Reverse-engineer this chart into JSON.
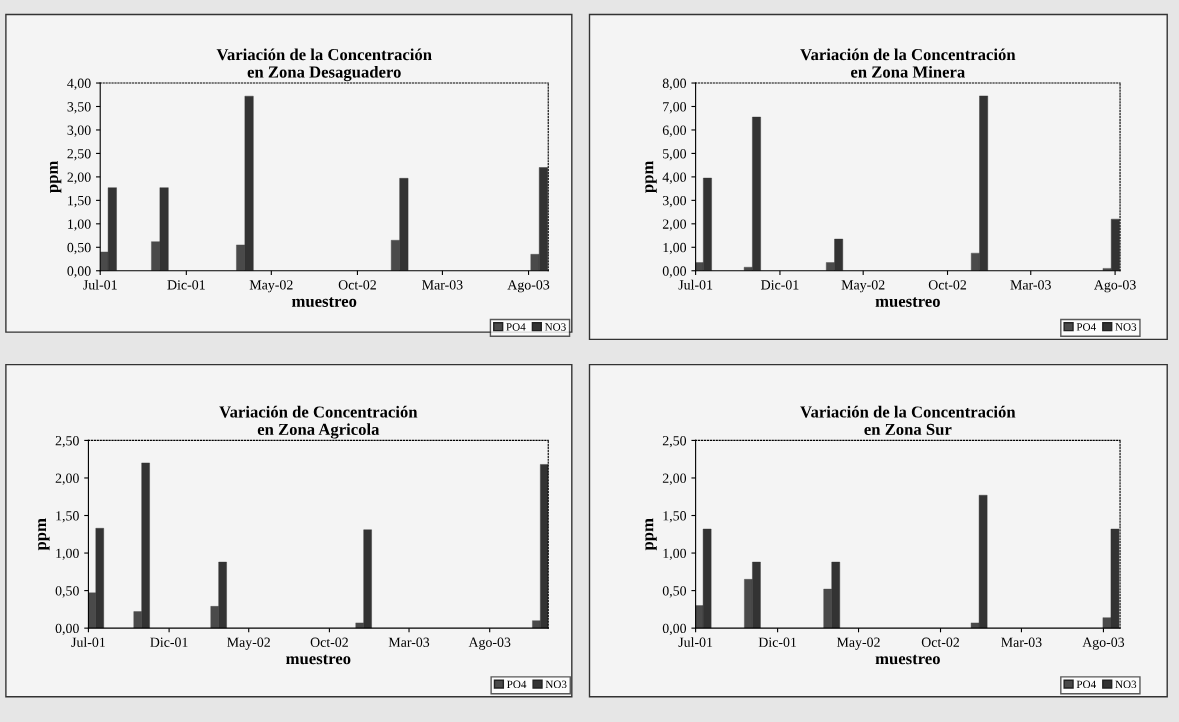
{
  "chart_data": [
    {
      "type": "bar",
      "title": "Variación de la Concentración\nen Zona Desaguadero",
      "xlabel": "muestreo",
      "ylabel": "ppm",
      "x": [
        "2001-07-15",
        "2001-10-15",
        "2002-03-15",
        "2002-12-15",
        "2003-08-20"
      ],
      "series": [
        {
          "name": "PO4",
          "color": "#4a4a4a",
          "values": [
            0.4,
            0.62,
            0.55,
            0.65,
            0.35
          ]
        },
        {
          "name": "NO3",
          "color": "#333333",
          "values": [
            1.77,
            1.77,
            3.72,
            1.97,
            2.2
          ]
        }
      ],
      "xlim": [
        "2001-07-01",
        "2003-09-05"
      ],
      "xticks": [
        {
          "value": "2001-07-01",
          "label": "Jul-01"
        },
        {
          "value": "2001-12-01",
          "label": "Dic-01"
        },
        {
          "value": "2002-05-01",
          "label": "May-02"
        },
        {
          "value": "2002-10-01",
          "label": "Oct-02"
        },
        {
          "value": "2003-03-01",
          "label": "Mar-03"
        },
        {
          "value": "2003-08-01",
          "label": "Ago-03"
        }
      ],
      "ylim": [
        0,
        4
      ],
      "yticks": [
        {
          "value": 0,
          "label": "0,00"
        },
        {
          "value": 0.5,
          "label": "0,50"
        },
        {
          "value": 1,
          "label": "1,00"
        },
        {
          "value": 1.5,
          "label": "1,50"
        },
        {
          "value": 2,
          "label": "2,00"
        },
        {
          "value": 2.5,
          "label": "2,50"
        },
        {
          "value": 3,
          "label": "3,00"
        },
        {
          "value": 3.5,
          "label": "3,50"
        },
        {
          "value": 4,
          "label": "4,00"
        }
      ],
      "legend": "bottom right"
    },
    {
      "type": "bar",
      "title": "Variación de la Concentración\nen Zona Minera",
      "xlabel": "muestreo",
      "ylabel": "ppm",
      "x": [
        "2001-07-15",
        "2001-10-12",
        "2002-03-10",
        "2002-11-28",
        "2003-07-25"
      ],
      "series": [
        {
          "name": "PO4",
          "color": "#4a4a4a",
          "values": [
            0.35,
            0.15,
            0.35,
            0.75,
            0.1
          ]
        },
        {
          "name": "NO3",
          "color": "#333333",
          "values": [
            3.95,
            6.55,
            1.35,
            7.45,
            2.2
          ]
        }
      ],
      "xlim": [
        "2001-07-01",
        "2003-08-10"
      ],
      "xticks": [
        {
          "value": "2001-07-01",
          "label": "Jul-01"
        },
        {
          "value": "2001-12-01",
          "label": "Dic-01"
        },
        {
          "value": "2002-05-01",
          "label": "May-02"
        },
        {
          "value": "2002-10-01",
          "label": "Oct-02"
        },
        {
          "value": "2003-03-01",
          "label": "Mar-03"
        },
        {
          "value": "2003-08-01",
          "label": "Ago-03"
        }
      ],
      "ylim": [
        0,
        8
      ],
      "yticks": [
        {
          "value": 0,
          "label": "0,00"
        },
        {
          "value": 1,
          "label": "1,00"
        },
        {
          "value": 2,
          "label": "2,00"
        },
        {
          "value": 3,
          "label": "3,00"
        },
        {
          "value": 4,
          "label": "4,00"
        },
        {
          "value": 5,
          "label": "5,00"
        },
        {
          "value": 6,
          "label": "6,00"
        },
        {
          "value": 7,
          "label": "7,00"
        },
        {
          "value": 8,
          "label": "8,00"
        }
      ],
      "legend": "bottom right"
    },
    {
      "type": "bar",
      "title": "Variación de Concentración\nen Zona Agricola",
      "xlabel": "muestreo",
      "ylabel": "ppm",
      "x": [
        "2001-07-15",
        "2001-10-10",
        "2002-03-05",
        "2002-12-05",
        "2003-11-05"
      ],
      "series": [
        {
          "name": "PO4",
          "color": "#4a4a4a",
          "values": [
            0.47,
            0.22,
            0.29,
            0.07,
            0.1
          ]
        },
        {
          "name": "NO3",
          "color": "#333333",
          "values": [
            1.33,
            2.2,
            0.88,
            1.31,
            2.18
          ]
        }
      ],
      "xlim": [
        "2001-07-01",
        "2003-11-20"
      ],
      "xticks": [
        {
          "value": "2001-07-01",
          "label": "Jul-01"
        },
        {
          "value": "2001-12-01",
          "label": "Dic-01"
        },
        {
          "value": "2002-05-01",
          "label": "May-02"
        },
        {
          "value": "2002-10-01",
          "label": "Oct-02"
        },
        {
          "value": "2003-03-01",
          "label": "Mar-03"
        },
        {
          "value": "2003-08-01",
          "label": "Ago-03"
        }
      ],
      "ylim": [
        0,
        2.5
      ],
      "yticks": [
        {
          "value": 0,
          "label": "0,00"
        },
        {
          "value": 0.5,
          "label": "0,50"
        },
        {
          "value": 1,
          "label": "1,00"
        },
        {
          "value": 1.5,
          "label": "1,50"
        },
        {
          "value": 2,
          "label": "2,00"
        },
        {
          "value": 2.5,
          "label": "2,50"
        }
      ],
      "legend": "bottom right"
    },
    {
      "type": "bar",
      "title": "Variación de la Concentración\nen Zona Sur",
      "xlabel": "muestreo",
      "ylabel": "ppm",
      "x": [
        "2001-07-15",
        "2001-10-15",
        "2002-03-12",
        "2002-12-12",
        "2003-08-15"
      ],
      "series": [
        {
          "name": "PO4",
          "color": "#4a4a4a",
          "values": [
            0.3,
            0.65,
            0.52,
            0.07,
            0.14
          ]
        },
        {
          "name": "NO3",
          "color": "#333333",
          "values": [
            1.32,
            0.88,
            0.88,
            1.77,
            1.32
          ]
        }
      ],
      "xlim": [
        "2001-07-01",
        "2003-09-01"
      ],
      "xticks": [
        {
          "value": "2001-07-01",
          "label": "Jul-01"
        },
        {
          "value": "2001-12-01",
          "label": "Dic-01"
        },
        {
          "value": "2002-05-01",
          "label": "May-02"
        },
        {
          "value": "2002-10-01",
          "label": "Oct-02"
        },
        {
          "value": "2003-03-01",
          "label": "Mar-03"
        },
        {
          "value": "2003-08-01",
          "label": "Ago-03"
        }
      ],
      "ylim": [
        0,
        2.5
      ],
      "yticks": [
        {
          "value": 0,
          "label": "0,00"
        },
        {
          "value": 0.5,
          "label": "0,50"
        },
        {
          "value": 1,
          "label": "1,00"
        },
        {
          "value": 1.5,
          "label": "1,50"
        },
        {
          "value": 2,
          "label": "2,00"
        },
        {
          "value": 2.5,
          "label": "2,50"
        }
      ],
      "legend": "bottom right"
    }
  ]
}
